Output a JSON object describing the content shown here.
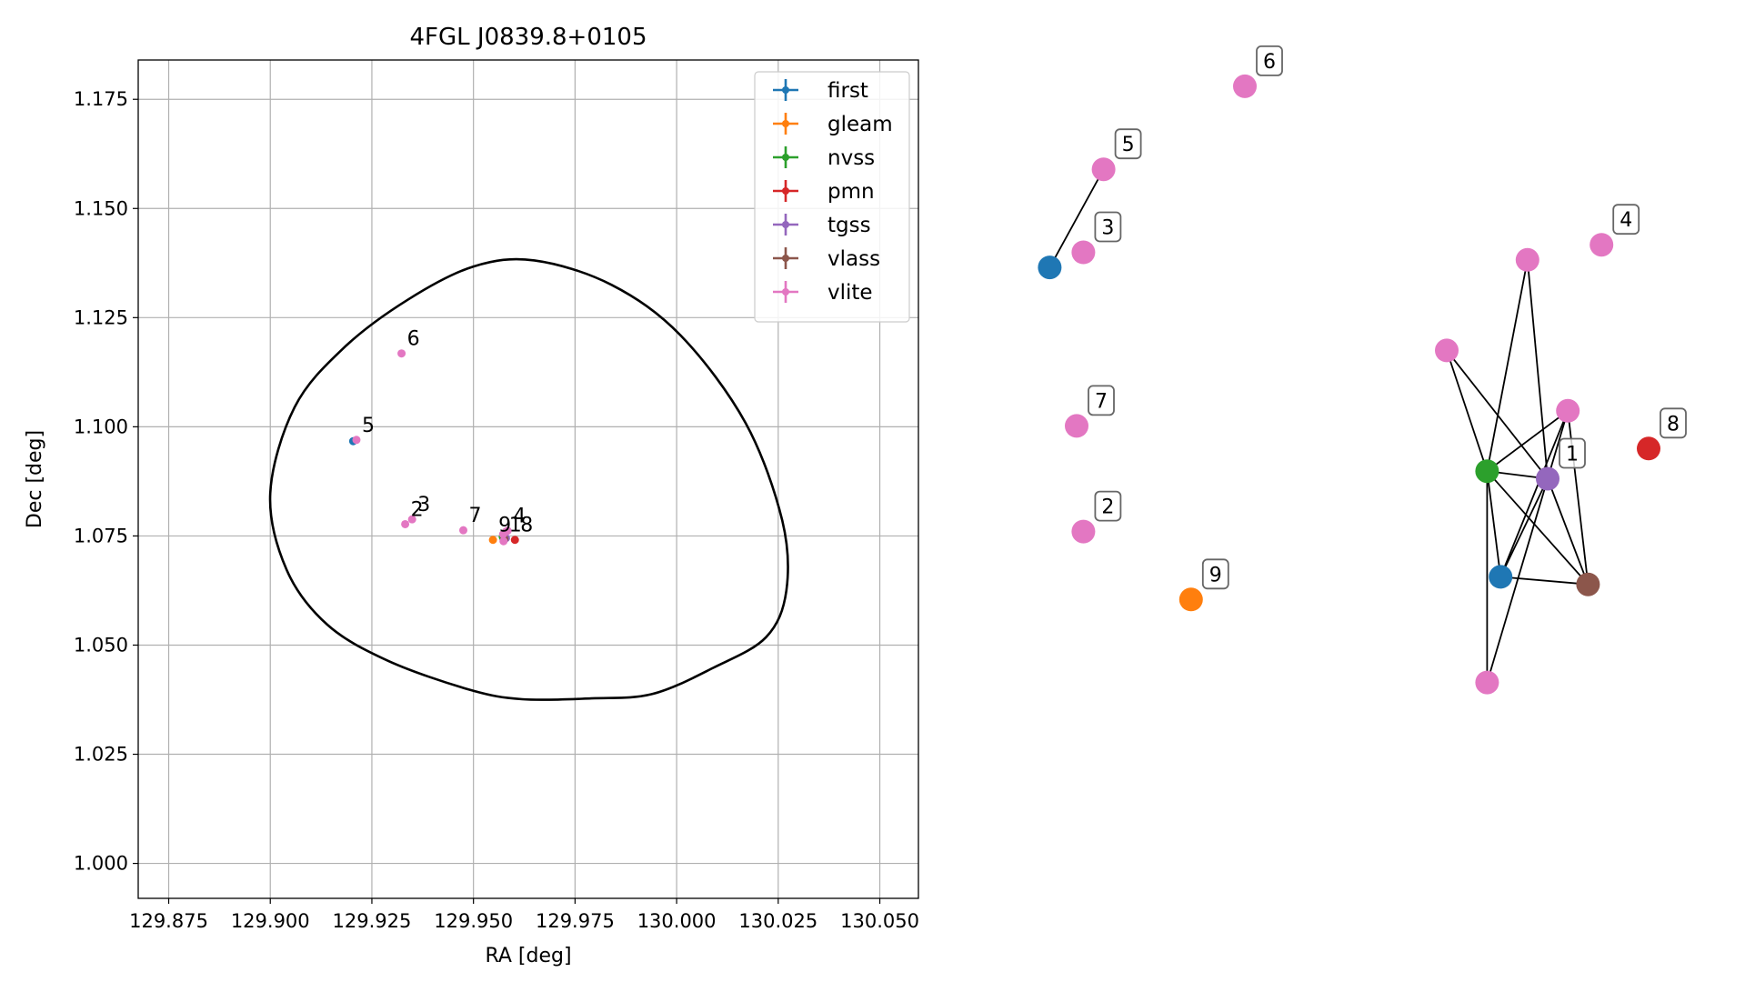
{
  "chart_data": [
    {
      "type": "scatter",
      "title": "4FGL J0839.8+0105",
      "xlabel": "RA [deg]",
      "ylabel": "Dec [deg]",
      "xlim": [
        129.8675,
        130.0595
      ],
      "ylim": [
        0.992,
        1.184
      ],
      "xticks": [
        129.875,
        129.9,
        129.925,
        129.95,
        129.975,
        130.0,
        130.025,
        130.05
      ],
      "xtick_labels": [
        "129.875",
        "129.900",
        "129.925",
        "129.950",
        "129.975",
        "130.000",
        "130.025",
        "130.050"
      ],
      "yticks": [
        1.0,
        1.025,
        1.05,
        1.075,
        1.1,
        1.125,
        1.15,
        1.175
      ],
      "ytick_labels": [
        "1.000",
        "1.025",
        "1.050",
        "1.075",
        "1.100",
        "1.125",
        "1.150",
        "1.175"
      ],
      "grid": true,
      "legend_position": "top-right",
      "series": [
        {
          "name": "first",
          "color": "#1f77b4",
          "points": [
            [
              129.9204,
              1.0967
            ],
            [
              129.9574,
              1.0742
            ]
          ]
        },
        {
          "name": "gleam",
          "color": "#ff7f0e",
          "points": [
            [
              129.9548,
              1.0741
            ]
          ]
        },
        {
          "name": "nvss",
          "color": "#2ca02c",
          "points": [
            [
              129.9572,
              1.0748
            ]
          ]
        },
        {
          "name": "pmn",
          "color": "#d62728",
          "points": [
            [
              129.9602,
              1.0741
            ]
          ]
        },
        {
          "name": "tgss",
          "color": "#9467bd",
          "points": [
            [
              129.958,
              1.0745
            ]
          ]
        },
        {
          "name": "vlass",
          "color": "#8c564b",
          "points": [
            [
              129.9576,
              1.0743
            ]
          ]
        },
        {
          "name": "vlite",
          "color": "#e377c2",
          "points": [
            [
              129.9212,
              1.097
            ],
            [
              129.9349,
              1.0788
            ],
            [
              129.9332,
              1.0777
            ],
            [
              129.9323,
              1.1168
            ],
            [
              129.9475,
              1.0763
            ],
            [
              129.9574,
              1.0738
            ],
            [
              129.9584,
              1.0762
            ],
            [
              129.9573,
              1.0754
            ],
            [
              129.958,
              1.076
            ]
          ]
        }
      ],
      "labels": [
        {
          "text": "6",
          "x": 129.9323,
          "y": 1.1168
        },
        {
          "text": "5",
          "x": 129.9212,
          "y": 1.097
        },
        {
          "text": "3",
          "x": 129.9349,
          "y": 1.0788
        },
        {
          "text": "2",
          "x": 129.9332,
          "y": 1.0777
        },
        {
          "text": "7",
          "x": 129.9475,
          "y": 1.0763
        },
        {
          "text": "4",
          "x": 129.9584,
          "y": 1.0762
        },
        {
          "text": "9",
          "x": 129.9548,
          "y": 1.0741
        },
        {
          "text": "1",
          "x": 129.9574,
          "y": 1.0742
        },
        {
          "text": "8",
          "x": 129.9602,
          "y": 1.0741
        }
      ],
      "ellipse": {
        "points": [
          [
            129.95,
            1.1367
          ],
          [
            129.965,
            1.1381
          ],
          [
            129.984,
            1.1325
          ],
          [
            130.001,
            1.1209
          ],
          [
            130.017,
            1.1008
          ],
          [
            130.026,
            1.0785
          ],
          [
            130.027,
            1.0625
          ],
          [
            130.022,
            1.0518
          ],
          [
            130.009,
            1.0448
          ],
          [
            129.994,
            1.0388
          ],
          [
            129.979,
            1.0378
          ],
          [
            129.962,
            1.0376
          ],
          [
            129.949,
            1.0398
          ],
          [
            129.929,
            1.0464
          ],
          [
            129.914,
            1.0547
          ],
          [
            129.904,
            1.0673
          ],
          [
            129.9,
            1.0848
          ],
          [
            129.906,
            1.1045
          ],
          [
            129.918,
            1.118
          ],
          [
            129.934,
            1.1292
          ]
        ],
        "color": "#000000"
      }
    },
    {
      "type": "network",
      "nodes": [
        {
          "id": "first_a",
          "color": "#1f77b4",
          "x": 0.06,
          "y": 0.27
        },
        {
          "id": "vlite_5",
          "color": "#e377c2",
          "x": 0.14,
          "y": 0.14
        },
        {
          "id": "vlite_6",
          "color": "#e377c2",
          "x": 0.35,
          "y": 0.03
        },
        {
          "id": "vlite_3",
          "color": "#e377c2",
          "x": 0.11,
          "y": 0.25
        },
        {
          "id": "vlite_7",
          "color": "#e377c2",
          "x": 0.1,
          "y": 0.48
        },
        {
          "id": "vlite_2",
          "color": "#e377c2",
          "x": 0.11,
          "y": 0.62
        },
        {
          "id": "gleam_9",
          "color": "#ff7f0e",
          "x": 0.27,
          "y": 0.71
        },
        {
          "id": "vlite_4",
          "color": "#e377c2",
          "x": 0.88,
          "y": 0.24
        },
        {
          "id": "pmn_8",
          "color": "#d62728",
          "x": 0.95,
          "y": 0.51
        },
        {
          "id": "vlite_a",
          "color": "#e377c2",
          "x": 0.77,
          "y": 0.26
        },
        {
          "id": "vlite_b",
          "color": "#e377c2",
          "x": 0.65,
          "y": 0.38
        },
        {
          "id": "vlite_c",
          "color": "#e377c2",
          "x": 0.83,
          "y": 0.46
        },
        {
          "id": "nvss",
          "color": "#2ca02c",
          "x": 0.71,
          "y": 0.54
        },
        {
          "id": "tgss_1",
          "color": "#9467bd",
          "x": 0.8,
          "y": 0.55
        },
        {
          "id": "first_b",
          "color": "#1f77b4",
          "x": 0.73,
          "y": 0.68
        },
        {
          "id": "vlass",
          "color": "#8c564b",
          "x": 0.86,
          "y": 0.69
        },
        {
          "id": "vlite_d",
          "color": "#e377c2",
          "x": 0.71,
          "y": 0.82
        }
      ],
      "edges": [
        [
          "first_a",
          "vlite_5"
        ],
        [
          "vlite_a",
          "nvss"
        ],
        [
          "vlite_a",
          "tgss_1"
        ],
        [
          "vlite_b",
          "nvss"
        ],
        [
          "vlite_b",
          "tgss_1"
        ],
        [
          "vlite_c",
          "nvss"
        ],
        [
          "vlite_c",
          "first_b"
        ],
        [
          "vlite_c",
          "vlass"
        ],
        [
          "vlite_c",
          "vlite_d"
        ],
        [
          "nvss",
          "tgss_1"
        ],
        [
          "nvss",
          "first_b"
        ],
        [
          "nvss",
          "vlass"
        ],
        [
          "nvss",
          "vlite_d"
        ],
        [
          "tgss_1",
          "first_b"
        ],
        [
          "tgss_1",
          "vlass"
        ],
        [
          "first_b",
          "vlass"
        ]
      ],
      "labels": [
        {
          "text": "1",
          "node": "tgss_1"
        },
        {
          "text": "2",
          "node": "vlite_2"
        },
        {
          "text": "3",
          "node": "vlite_3"
        },
        {
          "text": "4",
          "node": "vlite_4"
        },
        {
          "text": "5",
          "node": "vlite_5"
        },
        {
          "text": "6",
          "node": "vlite_6"
        },
        {
          "text": "7",
          "node": "vlite_7"
        },
        {
          "text": "8",
          "node": "pmn_8"
        },
        {
          "text": "9",
          "node": "gleam_9"
        }
      ]
    }
  ]
}
